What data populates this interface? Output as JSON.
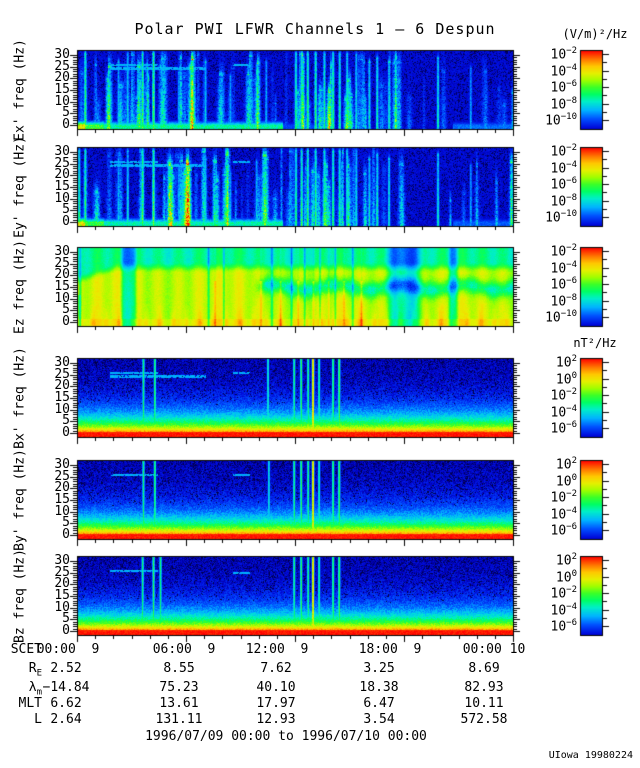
{
  "page": {
    "title": "Polar PWI LFWR Channels 1 — 6 Despun",
    "footer_range": "1996/07/09 00:00 to 1996/07/10 00:00",
    "credit": "UIowa 19980224"
  },
  "chart_data": {
    "type": "heatmap",
    "subtype": "spectrogram-stack",
    "description": "Six stacked 0-30 Hz frequency-time spectrograms (electric field Ex', Ey', Ez and magnetic field Bx', By', Bz) covering 24 hours of Polar PWI LFWR data",
    "x_axis": {
      "name": "SCET",
      "start": "1996/07/09 00:00",
      "end": "1996/07/10 00:00",
      "hours": 24,
      "major_tick_hours": 6,
      "minor_tick_hours": 1,
      "major_tick_labels": [
        "00:00  9",
        "06:00  9",
        "12:00  9",
        "18:00  9",
        "00:00 10"
      ]
    },
    "y_axis": {
      "tick_labels": [
        30,
        25,
        20,
        15,
        10,
        5,
        0
      ],
      "range_hz": [
        0,
        32
      ],
      "major_tick_hz": 5,
      "minor_tick_hz": 1
    },
    "colorbar_electric": {
      "unit": "(V/m)²/Hz",
      "label_exponents": [
        -2,
        -4,
        -6,
        -8,
        -10
      ],
      "decade_range": [
        -10,
        -2
      ]
    },
    "colorbar_magnetic": {
      "unit": "nT²/Hz",
      "label_exponents": [
        2,
        0,
        -2,
        -4,
        -6
      ],
      "decade_range": [
        -6,
        2
      ]
    },
    "palette_stops": [
      "#000010",
      "#000096",
      "#000adc",
      "#0050ff",
      "#00b4ff",
      "#00f0c8",
      "#00ff64",
      "#3cff28",
      "#a0ff00",
      "#e6f000",
      "#ffc800",
      "#ff7800",
      "#ff0000"
    ],
    "panels": [
      {
        "id": "ex",
        "ylabel": "Ex' freq (Hz)",
        "kind": "electric-dark",
        "colorbar": "electric",
        "lines": [
          {
            "t": 0.018,
            "s": 0.6,
            "h": 1.0
          },
          {
            "t": 0.094,
            "s": 0.4,
            "h": 0.9
          },
          {
            "t": 0.115,
            "s": 0.45,
            "h": 1.0
          },
          {
            "t": 0.149,
            "s": 0.62,
            "h": 1.0
          },
          {
            "t": 0.174,
            "s": 0.66,
            "h": 1.0
          },
          {
            "t": 0.232,
            "s": 0.38,
            "h": 0.75
          },
          {
            "t": 0.293,
            "s": 0.42,
            "h": 0.9
          },
          {
            "t": 0.35,
            "s": 0.36,
            "h": 0.7
          },
          {
            "t": 0.41,
            "s": 0.4,
            "h": 0.85
          },
          {
            "t": 0.432,
            "s": 0.38,
            "h": 0.9
          },
          {
            "t": 0.5,
            "s": 0.55,
            "h": 1.0
          },
          {
            "t": 0.513,
            "s": 0.58,
            "h": 1.0
          },
          {
            "t": 0.527,
            "s": 0.6,
            "h": 1.0
          },
          {
            "t": 0.545,
            "s": 0.58,
            "h": 1.0
          },
          {
            "t": 0.565,
            "s": 0.54,
            "h": 1.0
          },
          {
            "t": 0.585,
            "s": 0.58,
            "h": 1.0
          },
          {
            "t": 0.6,
            "s": 0.54,
            "h": 1.0
          },
          {
            "t": 0.617,
            "s": 0.5,
            "h": 1.0
          },
          {
            "t": 0.638,
            "s": 0.46,
            "h": 1.0
          },
          {
            "t": 0.668,
            "s": 0.46,
            "h": 0.9
          },
          {
            "t": 0.686,
            "s": 0.5,
            "h": 0.95
          },
          {
            "t": 0.713,
            "s": 0.46,
            "h": 0.9
          },
          {
            "t": 0.825,
            "s": 0.48,
            "h": 0.95
          },
          {
            "t": 0.9,
            "s": 0.36,
            "h": 0.8
          }
        ],
        "low_band": [
          {
            "t0": 0.0,
            "t1": 0.018,
            "v": 0.8
          },
          {
            "t0": 0.018,
            "t1": 0.06,
            "v": 0.6
          },
          {
            "t0": 0.06,
            "t1": 0.47,
            "v": 0.48
          },
          {
            "t0": 0.47,
            "t1": 0.56,
            "v": 0.2
          },
          {
            "t0": 0.56,
            "t1": 0.86,
            "v": 0.08
          },
          {
            "t0": 0.86,
            "t1": 1.0,
            "v": 0.26
          }
        ],
        "dashes": [
          {
            "f": 26,
            "t0": 0.075,
            "t1": 0.185
          },
          {
            "f": 24.5,
            "t0": 0.075,
            "t1": 0.295
          },
          {
            "f": 26,
            "t0": 0.355,
            "t1": 0.395
          }
        ]
      },
      {
        "id": "ey",
        "ylabel": "Ey' freq (Hz)",
        "kind": "electric-dark",
        "colorbar": "electric",
        "lines": [
          {
            "t": 0.004,
            "s": 0.55,
            "h": 1.0
          },
          {
            "t": 0.018,
            "s": 0.58,
            "h": 1.0
          },
          {
            "t": 0.094,
            "s": 0.4,
            "h": 0.9
          },
          {
            "t": 0.115,
            "s": 0.45,
            "h": 1.0
          },
          {
            "t": 0.149,
            "s": 0.62,
            "h": 1.0
          },
          {
            "t": 0.174,
            "s": 0.64,
            "h": 1.0
          },
          {
            "t": 0.232,
            "s": 0.38,
            "h": 0.75
          },
          {
            "t": 0.293,
            "s": 0.42,
            "h": 0.9
          },
          {
            "t": 0.35,
            "s": 0.36,
            "h": 0.7
          },
          {
            "t": 0.41,
            "s": 0.4,
            "h": 0.85
          },
          {
            "t": 0.432,
            "s": 0.38,
            "h": 0.9
          },
          {
            "t": 0.5,
            "s": 0.55,
            "h": 1.0
          },
          {
            "t": 0.513,
            "s": 0.58,
            "h": 1.0
          },
          {
            "t": 0.527,
            "s": 0.6,
            "h": 1.0
          },
          {
            "t": 0.545,
            "s": 0.58,
            "h": 1.0
          },
          {
            "t": 0.565,
            "s": 0.54,
            "h": 1.0
          },
          {
            "t": 0.585,
            "s": 0.58,
            "h": 1.0
          },
          {
            "t": 0.6,
            "s": 0.54,
            "h": 1.0
          },
          {
            "t": 0.617,
            "s": 0.5,
            "h": 1.0
          },
          {
            "t": 0.638,
            "s": 0.46,
            "h": 1.0
          },
          {
            "t": 0.668,
            "s": 0.46,
            "h": 0.9
          },
          {
            "t": 0.686,
            "s": 0.5,
            "h": 0.95
          },
          {
            "t": 0.713,
            "s": 0.46,
            "h": 0.9
          },
          {
            "t": 0.825,
            "s": 0.48,
            "h": 0.95
          },
          {
            "t": 0.9,
            "s": 0.36,
            "h": 0.8
          }
        ],
        "low_band": [
          {
            "t0": 0.0,
            "t1": 0.018,
            "v": 0.78
          },
          {
            "t0": 0.018,
            "t1": 0.06,
            "v": 0.58
          },
          {
            "t0": 0.06,
            "t1": 0.47,
            "v": 0.46
          },
          {
            "t0": 0.47,
            "t1": 0.56,
            "v": 0.18
          },
          {
            "t0": 0.56,
            "t1": 0.86,
            "v": 0.08
          },
          {
            "t0": 0.86,
            "t1": 1.0,
            "v": 0.24
          }
        ],
        "dashes": [
          {
            "f": 26,
            "t0": 0.075,
            "t1": 0.185
          },
          {
            "f": 24.5,
            "t0": 0.075,
            "t1": 0.295
          },
          {
            "f": 26,
            "t0": 0.355,
            "t1": 0.395
          }
        ]
      },
      {
        "id": "ez",
        "ylabel": "Ez freq (Hz)",
        "kind": "electric-bright",
        "colorbar": "electric",
        "green_bands": [
          {
            "t0": 0.0,
            "t1": 0.012,
            "dv": -0.3,
            "e": 0.008
          },
          {
            "t0": 0.095,
            "t1": 0.14,
            "dv": -0.26,
            "e": 0.012
          },
          {
            "t0": 0.7,
            "t1": 0.8,
            "dv": -0.28,
            "e": 0.03
          },
          {
            "t0": 0.845,
            "t1": 0.875,
            "dv": -0.24,
            "e": 0.012
          }
        ],
        "horiz_band": {
          "f": 15,
          "sigma": 2.4,
          "t0": 0.4,
          "dv": -0.24
        },
        "top_band_start_hz": 24,
        "thin_lines": [
          0.3,
          0.315,
          0.335,
          0.42,
          0.445,
          0.465,
          0.49,
          0.505,
          0.52,
          0.54,
          0.555,
          0.575,
          0.59,
          0.61,
          0.63,
          0.65
        ]
      },
      {
        "id": "bx",
        "ylabel": "Bx' freq (Hz)",
        "kind": "magnetic",
        "colorbar": "magnetic",
        "lines": [
          {
            "t": 0.151,
            "s": 0.52
          },
          {
            "t": 0.177,
            "s": 0.55
          },
          {
            "t": 0.436,
            "s": 0.46
          },
          {
            "t": 0.496,
            "s": 0.52
          },
          {
            "t": 0.512,
            "s": 0.55
          },
          {
            "t": 0.528,
            "s": 0.52
          },
          {
            "t": 0.539,
            "s": 0.88
          },
          {
            "t": 0.553,
            "s": 0.5
          },
          {
            "t": 0.585,
            "s": 0.55
          },
          {
            "t": 0.599,
            "s": 0.6
          }
        ],
        "dashes": [
          {
            "f": 26,
            "t0": 0.075,
            "t1": 0.185
          },
          {
            "f": 24.5,
            "t0": 0.075,
            "t1": 0.295
          },
          {
            "f": 26,
            "t0": 0.355,
            "t1": 0.395
          }
        ]
      },
      {
        "id": "by",
        "ylabel": "By' freq (Hz)",
        "kind": "magnetic",
        "colorbar": "magnetic",
        "lines": [
          {
            "t": 0.151,
            "s": 0.52
          },
          {
            "t": 0.177,
            "s": 0.55
          },
          {
            "t": 0.438,
            "s": 0.42
          },
          {
            "t": 0.496,
            "s": 0.52
          },
          {
            "t": 0.512,
            "s": 0.55
          },
          {
            "t": 0.528,
            "s": 0.52
          },
          {
            "t": 0.539,
            "s": 0.86
          },
          {
            "t": 0.553,
            "s": 0.48
          },
          {
            "t": 0.585,
            "s": 0.55
          },
          {
            "t": 0.599,
            "s": 0.58
          }
        ],
        "dashes": [
          {
            "f": 26,
            "t0": 0.075,
            "t1": 0.185
          },
          {
            "f": 26,
            "t0": 0.355,
            "t1": 0.395
          }
        ]
      },
      {
        "id": "bz",
        "ylabel": "Bz freq (Hz)",
        "kind": "magnetic",
        "colorbar": "magnetic",
        "lines": [
          {
            "t": 0.149,
            "s": 0.52
          },
          {
            "t": 0.174,
            "s": 0.55
          },
          {
            "t": 0.19,
            "s": 0.52
          },
          {
            "t": 0.496,
            "s": 0.52
          },
          {
            "t": 0.512,
            "s": 0.55
          },
          {
            "t": 0.528,
            "s": 0.52
          },
          {
            "t": 0.539,
            "s": 0.85
          },
          {
            "t": 0.553,
            "s": 0.5
          },
          {
            "t": 0.585,
            "s": 0.55
          },
          {
            "t": 0.599,
            "s": 0.58
          }
        ],
        "dashes": [
          {
            "f": 26,
            "t0": 0.075,
            "t1": 0.185
          },
          {
            "f": 25,
            "t0": 0.355,
            "t1": 0.395
          }
        ]
      }
    ],
    "ephemeris": {
      "rows": [
        {
          "label": "SCET",
          "sub": "",
          "values": [
            "00:00  9",
            "06:00  9",
            "12:00  9",
            "18:00  9",
            "00:00 10"
          ]
        },
        {
          "label": "R",
          "sub": "E",
          "values": [
            "2.52",
            "8.55",
            "7.62",
            "3.25",
            "8.69"
          ]
        },
        {
          "label": "λ",
          "sub": "m",
          "values": [
            "−14.84",
            "75.23",
            "40.10",
            "18.38",
            "82.93"
          ]
        },
        {
          "label": "MLT",
          "sub": "",
          "values": [
            "6.62",
            "13.61",
            "17.97",
            "6.47",
            "10.11"
          ]
        },
        {
          "label": "L",
          "sub": "",
          "values": [
            "2.64",
            "131.11",
            "12.93",
            "3.54",
            "572.58"
          ]
        }
      ]
    }
  }
}
